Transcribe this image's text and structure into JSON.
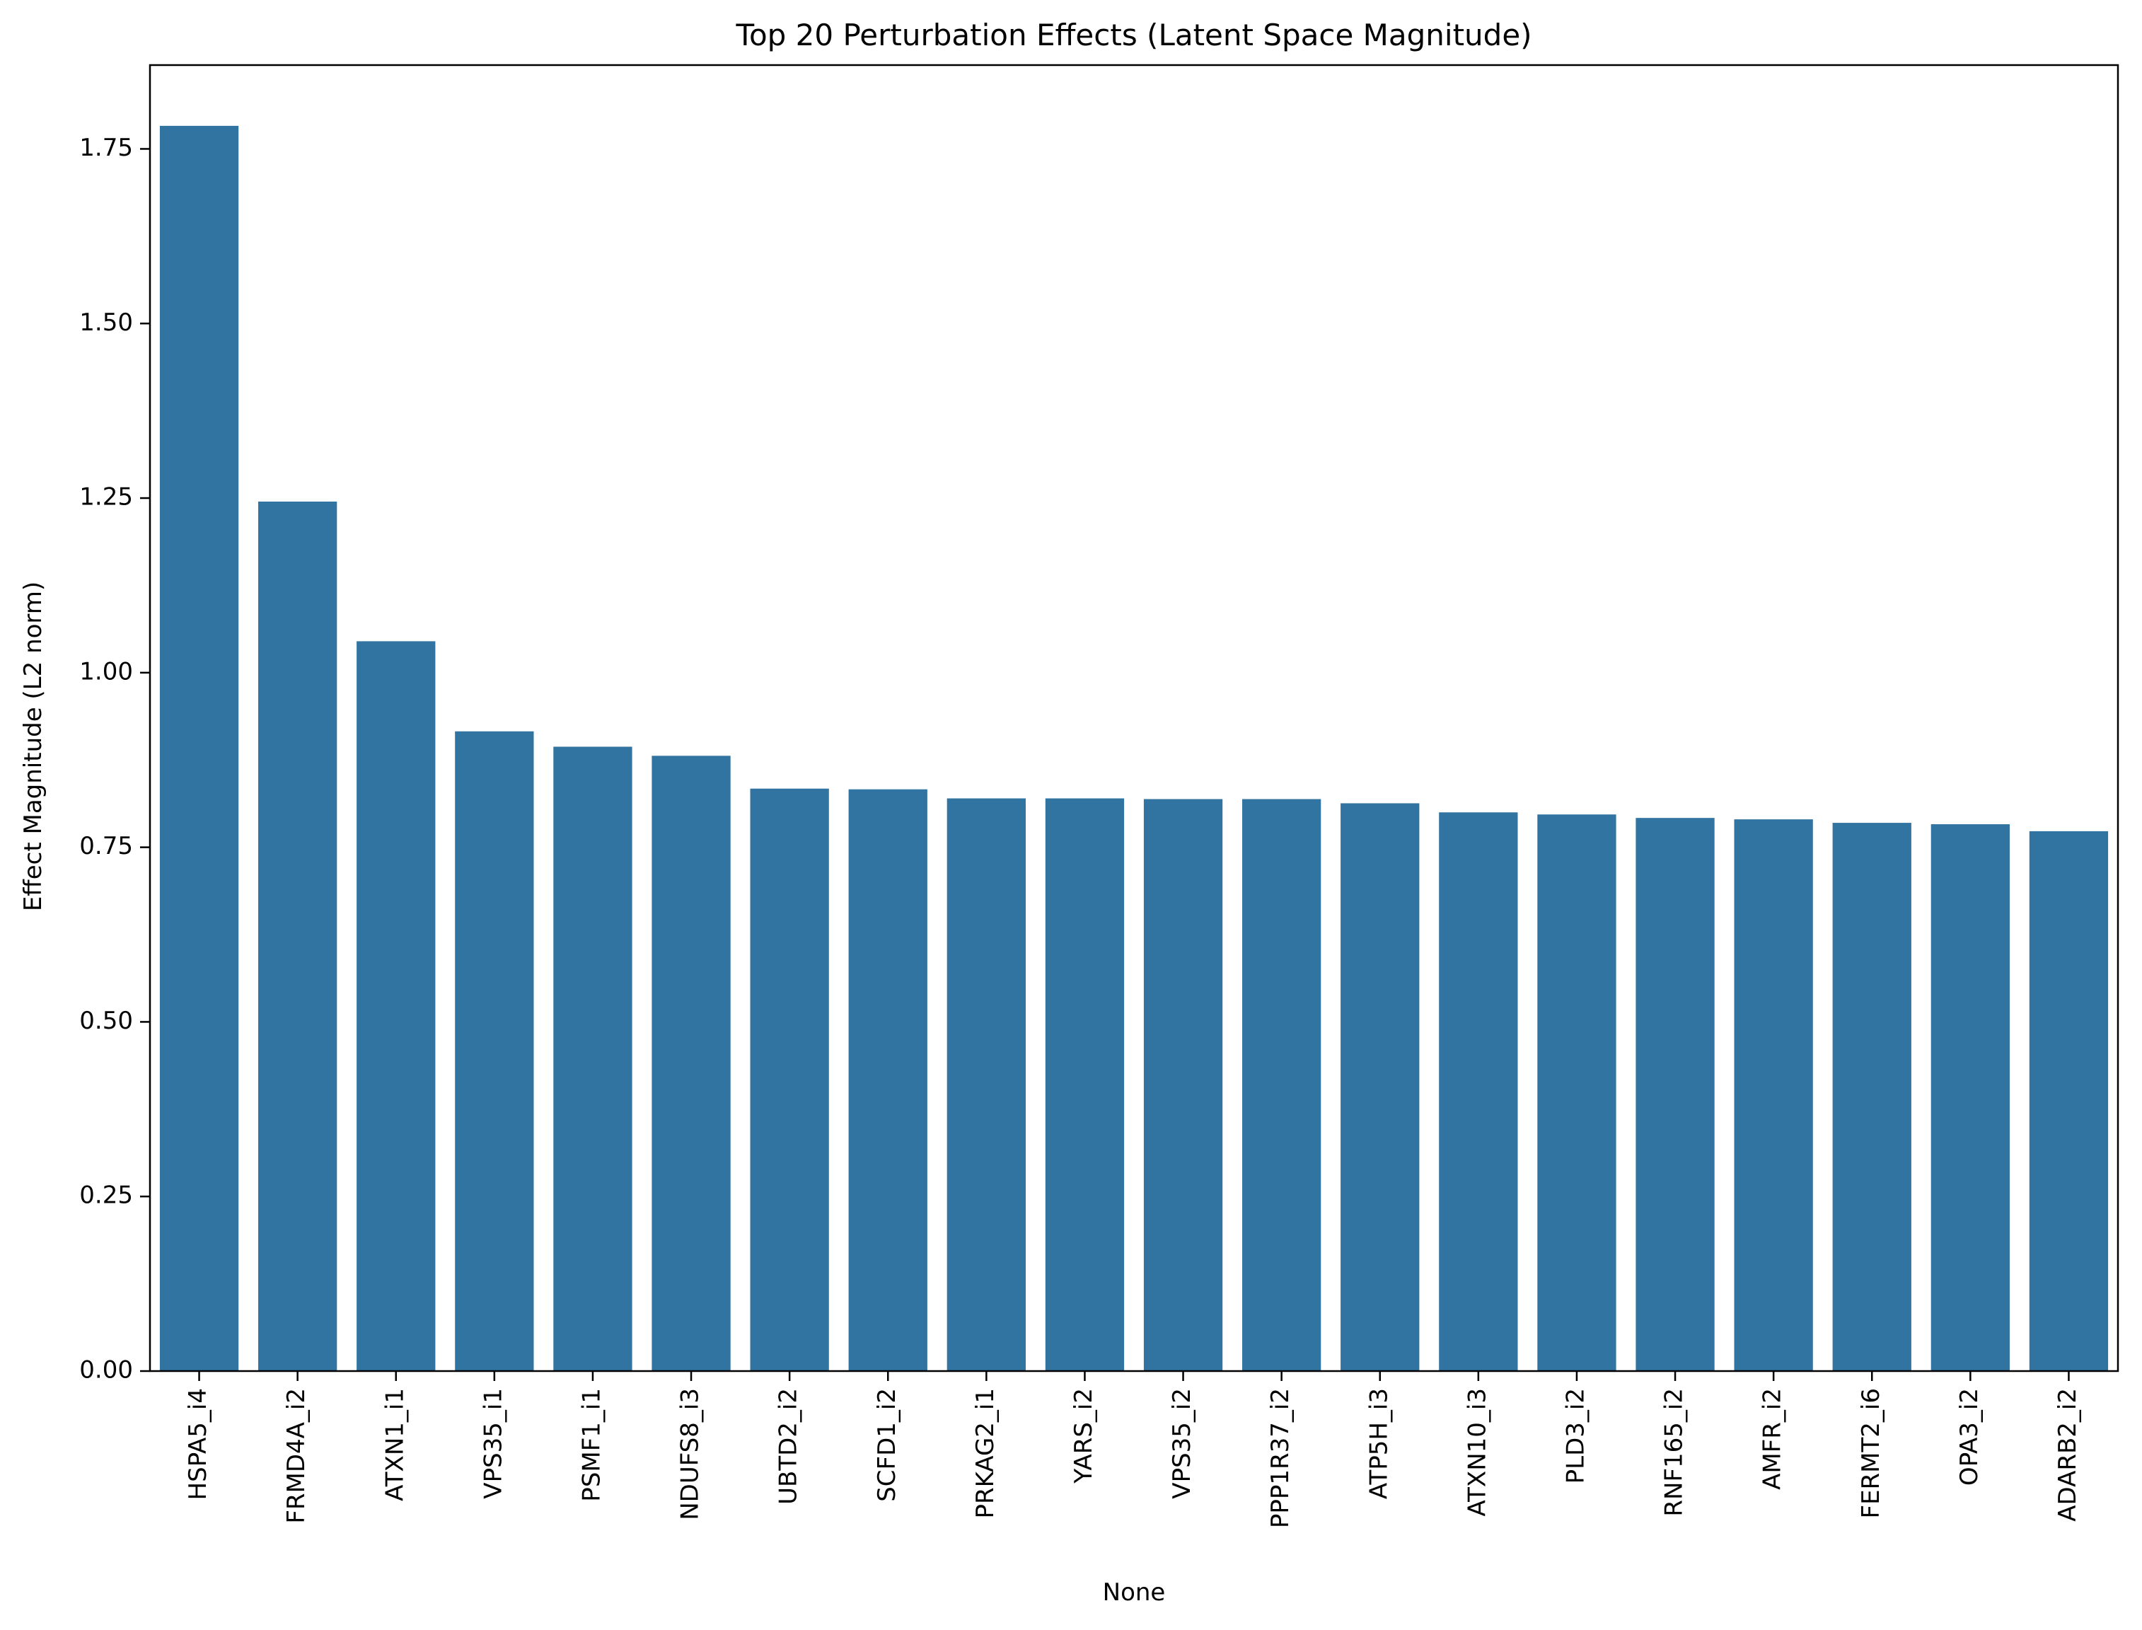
{
  "chart_data": {
    "type": "bar",
    "title": "Top 20 Perturbation Effects (Latent Space Magnitude)",
    "xlabel": "None",
    "ylabel": "Effect Magnitude (L2 norm)",
    "ylim": [
      0,
      1.87
    ],
    "yticks": [
      "0.00",
      "0.25",
      "0.50",
      "0.75",
      "1.00",
      "1.25",
      "1.50",
      "1.75"
    ],
    "grid": false,
    "legend": "none",
    "bar_color": "#3274a1",
    "categories": [
      "HSPA5_i4",
      "FRMD4A_i2",
      "ATXN1_i1",
      "VPS35_i1",
      "PSMF1_i1",
      "NDUFS8_i3",
      "UBTD2_i2",
      "SCFD1_i2",
      "PRKAG2_i1",
      "YARS_i2",
      "VPS35_i2",
      "PPP1R37_i2",
      "ATP5H_i3",
      "ATXN10_i3",
      "PLD3_i2",
      "RNF165_i2",
      "AMFR_i2",
      "FERMT2_i6",
      "OPA3_i2",
      "ADARB2_i2"
    ],
    "values": [
      1.783,
      1.245,
      1.045,
      0.916,
      0.894,
      0.881,
      0.834,
      0.833,
      0.82,
      0.82,
      0.819,
      0.819,
      0.813,
      0.8,
      0.797,
      0.792,
      0.79,
      0.785,
      0.783,
      0.773
    ]
  }
}
